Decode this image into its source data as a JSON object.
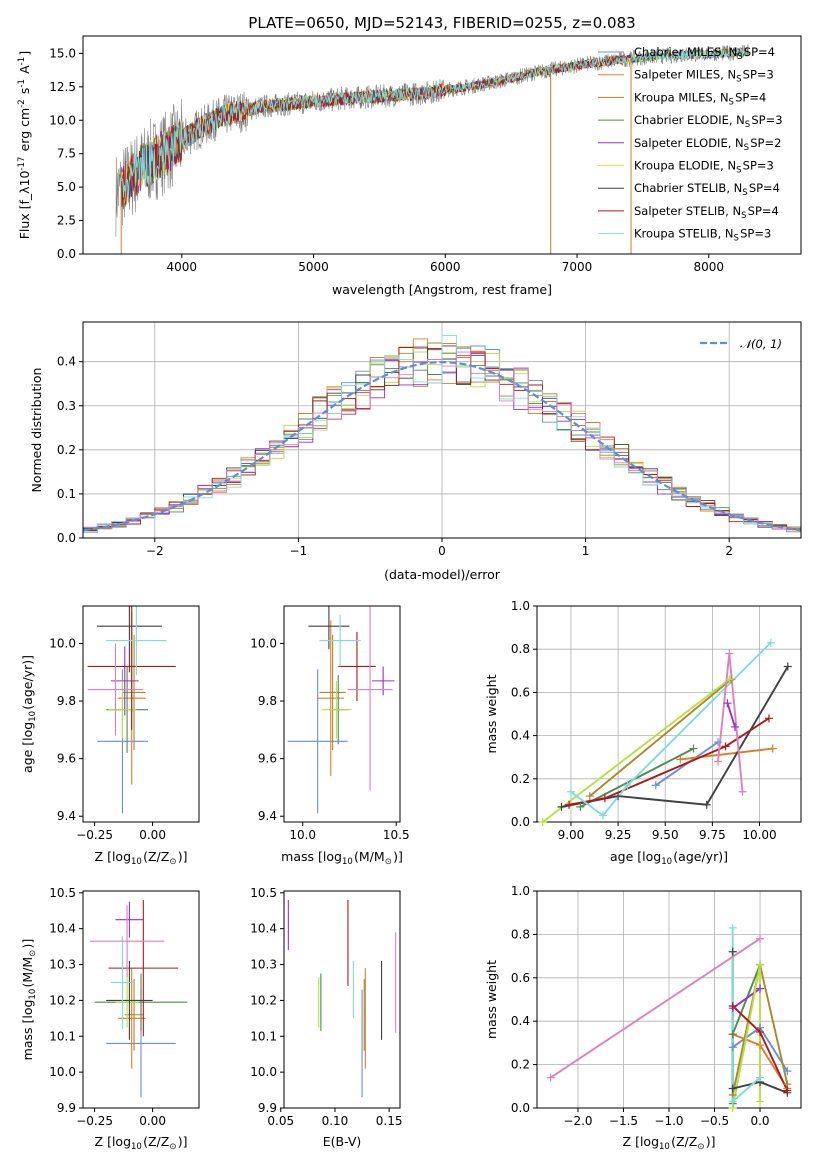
{
  "figure_title": "PLATE=0650, MJD=52143, FIBERID=0255, z=0.083",
  "colors": {
    "chabrier_miles": "#6a8fd8",
    "salpeter_miles": "#e07b2a",
    "kroupa_miles": "#a8882a",
    "chabrier_elodie": "#4e8a52",
    "salpeter_elodie": "#9b30c8",
    "kroupa_elodie": "#f0e040",
    "chabrier_stelib": "#404040",
    "salpeter_stelib": "#b01818",
    "kroupa_stelib": "#7fdcdc",
    "pink": "#e07fbf",
    "lime": "#b8e040",
    "spectrum": "#808080",
    "normal_curve": "#5b8fd6",
    "grid": "#b0b0b0"
  },
  "chart_data": [
    {
      "id": "spectrum",
      "type": "line",
      "title": "PLATE=0650, MJD=52143, FIBERID=0255, z=0.083",
      "xlabel": "wavelength [Angstrom, rest frame]",
      "ylabel": "Flux [f_λ10^{-17} erg cm^{-2} s^{-1} A^{-1}]",
      "xlim": [
        3250,
        8700
      ],
      "ylim": [
        0,
        16.3
      ],
      "xticks": [
        "4000",
        "5000",
        "6000",
        "7000",
        "8000"
      ],
      "yticks": [
        "0.0",
        "2.5",
        "5.0",
        "7.5",
        "10.0",
        "12.5",
        "15.0"
      ],
      "grid": false,
      "legend_position": "top-right",
      "continuum": [
        [
          3500,
          4.5
        ],
        [
          3700,
          6.5
        ],
        [
          3900,
          7.8
        ],
        [
          4100,
          9.2
        ],
        [
          4300,
          10.3
        ],
        [
          4600,
          11.0
        ],
        [
          4900,
          11.3
        ],
        [
          5200,
          11.6
        ],
        [
          5500,
          11.8
        ],
        [
          5800,
          12.0
        ],
        [
          6100,
          12.4
        ],
        [
          6400,
          12.9
        ],
        [
          6700,
          13.6
        ],
        [
          7000,
          14.1
        ],
        [
          7300,
          14.5
        ],
        [
          7500,
          14.7
        ],
        [
          7800,
          14.9
        ],
        [
          8100,
          15.0
        ],
        [
          8300,
          15.1
        ]
      ],
      "legend": [
        "Chabrier MILES, N_SSP=4",
        "Salpeter MILES, N_SSP=3",
        "Kroupa MILES, N_SSP=4",
        "Chabrier ELODIE, N_SSP=3",
        "Salpeter ELODIE, N_SSP=2",
        "Kroupa ELODIE, N_SSP=3",
        "Chabrier STELIB, N_SSP=4",
        "Salpeter STELIB, N_SSP=4",
        "Kroupa STELIB, N_SSP=3"
      ]
    },
    {
      "id": "residuals",
      "type": "histogram",
      "xlabel": "(data-model)/error",
      "ylabel": "Normed distribution",
      "xlim": [
        -2.5,
        2.5
      ],
      "ylim": [
        0,
        0.49
      ],
      "xticks": [
        "−2",
        "−1",
        "0",
        "1",
        "2"
      ],
      "yticks": [
        "0.0",
        "0.1",
        "0.2",
        "0.3",
        "0.4"
      ],
      "grid": true,
      "legend": [
        "𝒩(0, 1)"
      ],
      "legend_position": "top-right",
      "bin_width": 0.1
    },
    {
      "id": "z_age",
      "type": "errorbar",
      "xlabel": "Z [log10(Z/Z⊙)]",
      "ylabel": "age [log10(age/yr)]",
      "xlim": [
        -0.3,
        0.2
      ],
      "ylim": [
        9.38,
        10.13
      ],
      "xticks": [
        "−0.25",
        "0.00"
      ],
      "yticks": [
        "9.4",
        "9.6",
        "9.8",
        "10.0"
      ],
      "points": [
        {
          "x": -0.13,
          "y": 9.66,
          "xerr": 0.11,
          "yerr": 0.25,
          "color": "chabrier_miles"
        },
        {
          "x": -0.09,
          "y": 9.81,
          "xerr": 0.06,
          "yerr": 0.3,
          "color": "salpeter_miles"
        },
        {
          "x": -0.08,
          "y": 9.83,
          "xerr": 0.05,
          "yerr": 0.2,
          "color": "kroupa_miles"
        },
        {
          "x": -0.11,
          "y": 9.77,
          "xerr": 0.09,
          "yerr": 0.15,
          "color": "chabrier_elodie"
        },
        {
          "x": -0.12,
          "y": 9.87,
          "xerr": 0.06,
          "yerr": 0.12,
          "color": "salpeter_elodie"
        },
        {
          "x": -0.13,
          "y": 9.77,
          "xerr": 0.06,
          "yerr": 0.1,
          "color": "lime"
        },
        {
          "x": -0.1,
          "y": 10.06,
          "xerr": 0.14,
          "yerr": 0.16,
          "color": "chabrier_stelib"
        },
        {
          "x": -0.09,
          "y": 9.92,
          "xerr": 0.19,
          "yerr": 0.22,
          "color": "salpeter_stelib"
        },
        {
          "x": -0.07,
          "y": 10.01,
          "xerr": 0.13,
          "yerr": 0.12,
          "color": "kroupa_stelib"
        },
        {
          "x": -0.16,
          "y": 9.84,
          "xerr": 0.12,
          "yerr": 0.16,
          "color": "pink"
        }
      ]
    },
    {
      "id": "mass_age",
      "type": "errorbar",
      "xlabel": "mass [log10(M/M⊙)]",
      "ylabel": "",
      "xlim": [
        9.9,
        10.52
      ],
      "ylim": [
        9.38,
        10.13
      ],
      "xticks": [
        "10.0",
        "10.5"
      ],
      "yticks": [
        "9.4",
        "9.6",
        "9.8",
        "10.0"
      ],
      "points": [
        {
          "x": 10.08,
          "y": 9.66,
          "xerr": 0.16,
          "yerr": 0.25,
          "color": "chabrier_miles"
        },
        {
          "x": 10.15,
          "y": 9.81,
          "xerr": 0.07,
          "yerr": 0.27,
          "color": "salpeter_miles"
        },
        {
          "x": 10.16,
          "y": 9.83,
          "xerr": 0.07,
          "yerr": 0.2,
          "color": "kroupa_miles"
        },
        {
          "x": 10.19,
          "y": 9.77,
          "xerr": 0.05,
          "yerr": 0.12,
          "color": "chabrier_elodie"
        },
        {
          "x": 10.43,
          "y": 9.87,
          "xerr": 0.06,
          "yerr": 0.05,
          "color": "salpeter_elodie"
        },
        {
          "x": 10.18,
          "y": 9.77,
          "xerr": 0.08,
          "yerr": 0.1,
          "color": "lime"
        },
        {
          "x": 10.14,
          "y": 10.06,
          "xerr": 0.11,
          "yerr": 0.08,
          "color": "chabrier_stelib"
        },
        {
          "x": 10.29,
          "y": 9.92,
          "xerr": 0.1,
          "yerr": 0.12,
          "color": "salpeter_stelib"
        },
        {
          "x": 10.2,
          "y": 10.01,
          "xerr": 0.11,
          "yerr": 0.09,
          "color": "kroupa_stelib"
        },
        {
          "x": 10.36,
          "y": 9.84,
          "xerr": 0.12,
          "yerr": 0.35,
          "color": "pink"
        }
      ]
    },
    {
      "id": "age_weight",
      "type": "line",
      "xlabel": "age [log10(age/yr)]",
      "ylabel": "mass weight",
      "xlim": [
        8.82,
        10.22
      ],
      "ylim": [
        0,
        1.0
      ],
      "xticks": [
        "9.00",
        "9.25",
        "9.50",
        "9.75",
        "10.00"
      ],
      "yticks": [
        "0.0",
        "0.2",
        "0.4",
        "0.6",
        "0.8",
        "1.0"
      ],
      "grid": true,
      "series": [
        {
          "color": "chabrier_miles",
          "x": [
            9.45,
            9.78
          ],
          "y": [
            0.17,
            0.37
          ]
        },
        {
          "color": "salpeter_miles",
          "x": [
            9.58,
            10.07
          ],
          "y": [
            0.29,
            0.34
          ]
        },
        {
          "color": "kroupa_miles",
          "x": [
            9.1,
            9.85
          ],
          "y": [
            0.12,
            0.66
          ]
        },
        {
          "color": "chabrier_elodie",
          "x": [
            9.05,
            9.65
          ],
          "y": [
            0.07,
            0.34
          ]
        },
        {
          "color": "salpeter_elodie",
          "x": [
            9.83,
            9.87
          ],
          "y": [
            0.55,
            0.44
          ]
        },
        {
          "color": "lime",
          "x": [
            8.85,
            9.84
          ],
          "y": [
            0.0,
            0.66
          ]
        },
        {
          "color": "chabrier_stelib",
          "x": [
            8.95,
            9.25,
            9.72,
            10.15
          ],
          "y": [
            0.07,
            0.12,
            0.08,
            0.72
          ]
        },
        {
          "color": "salpeter_stelib",
          "x": [
            8.99,
            9.18,
            9.82,
            10.05
          ],
          "y": [
            0.08,
            0.11,
            0.35,
            0.48
          ]
        },
        {
          "color": "kroupa_stelib",
          "x": [
            9.0,
            9.17,
            9.3,
            10.06
          ],
          "y": [
            0.14,
            0.03,
            0.17,
            0.83
          ]
        },
        {
          "color": "pink",
          "x": [
            9.78,
            9.84,
            9.91
          ],
          "y": [
            0.28,
            0.78,
            0.14
          ]
        }
      ]
    },
    {
      "id": "z_mass",
      "type": "errorbar",
      "xlabel": "Z [log10(Z/Z⊙)]",
      "ylabel": "mass [log10(M/M⊙)]",
      "xlim": [
        -0.3,
        0.2
      ],
      "ylim": [
        9.9,
        10.505
      ],
      "xticks": [
        "−0.25",
        "0.00"
      ],
      "yticks": [
        "9.9",
        "10.0",
        "10.1",
        "10.2",
        "10.3",
        "10.4",
        "10.5"
      ],
      "points": [
        {
          "x": -0.05,
          "y": 10.08,
          "xerr": 0.15,
          "yerr": 0.15,
          "color": "chabrier_miles"
        },
        {
          "x": -0.09,
          "y": 10.15,
          "xerr": 0.06,
          "yerr": 0.14,
          "color": "salpeter_miles"
        },
        {
          "x": -0.08,
          "y": 10.16,
          "xerr": 0.04,
          "yerr": 0.1,
          "color": "kroupa_miles"
        },
        {
          "x": -0.05,
          "y": 10.195,
          "xerr": 0.2,
          "yerr": 0.08,
          "color": "chabrier_elodie"
        },
        {
          "x": -0.1,
          "y": 10.425,
          "xerr": 0.06,
          "yerr": 0.05,
          "color": "salpeter_elodie"
        },
        {
          "x": -0.11,
          "y": 10.195,
          "xerr": 0.05,
          "yerr": 0.07,
          "color": "lime"
        },
        {
          "x": -0.1,
          "y": 10.2,
          "xerr": 0.1,
          "yerr": 0.11,
          "color": "chabrier_stelib"
        },
        {
          "x": -0.04,
          "y": 10.29,
          "xerr": 0.15,
          "yerr": 0.19,
          "color": "salpeter_stelib"
        },
        {
          "x": -0.13,
          "y": 10.25,
          "xerr": 0.05,
          "yerr": 0.13,
          "color": "kroupa_stelib"
        },
        {
          "x": -0.11,
          "y": 10.365,
          "xerr": 0.16,
          "yerr": 0.1,
          "color": "pink"
        }
      ]
    },
    {
      "id": "ebv_mass",
      "type": "errorbar",
      "xlabel": "E(B-V)",
      "ylabel": "",
      "xlim": [
        0.053,
        0.16
      ],
      "ylim": [
        9.9,
        10.505
      ],
      "xticks": [
        "0.05",
        "0.10",
        "0.15"
      ],
      "yticks": [
        "9.9",
        "10.0",
        "10.1",
        "10.2",
        "10.3",
        "10.4",
        "10.5"
      ],
      "points": [
        {
          "x": 0.125,
          "y": 10.08,
          "yerr": 0.15,
          "color": "chabrier_miles"
        },
        {
          "x": 0.128,
          "y": 10.15,
          "yerr": 0.14,
          "color": "salpeter_miles"
        },
        {
          "x": 0.127,
          "y": 10.16,
          "yerr": 0.1,
          "color": "kroupa_miles"
        },
        {
          "x": 0.087,
          "y": 10.195,
          "yerr": 0.08,
          "color": "chabrier_elodie"
        },
        {
          "x": 0.057,
          "y": 10.41,
          "yerr": 0.07,
          "color": "salpeter_elodie"
        },
        {
          "x": 0.085,
          "y": 10.195,
          "yerr": 0.07,
          "color": "lime"
        },
        {
          "x": 0.143,
          "y": 10.2,
          "yerr": 0.11,
          "color": "chabrier_stelib"
        },
        {
          "x": 0.112,
          "y": 10.36,
          "yerr": 0.12,
          "color": "salpeter_stelib"
        },
        {
          "x": 0.117,
          "y": 10.23,
          "yerr": 0.08,
          "color": "kroupa_stelib"
        },
        {
          "x": 0.156,
          "y": 10.25,
          "yerr": 0.14,
          "color": "pink"
        }
      ]
    },
    {
      "id": "z_weight",
      "type": "line",
      "xlabel": "Z [log10(Z/Z⊙)]",
      "ylabel": "mass weight",
      "xlim": [
        -2.45,
        0.45
      ],
      "ylim": [
        0,
        1.0
      ],
      "xticks": [
        "−2.0",
        "−1.5",
        "−1.0",
        "−0.5",
        "0.0"
      ],
      "yticks": [
        "0.0",
        "0.2",
        "0.4",
        "0.6",
        "0.8",
        "1.0"
      ],
      "grid": true,
      "series": [
        {
          "color": "chabrier_miles",
          "x": [
            -0.3,
            0.0,
            0.3
          ],
          "y": [
            0.28,
            0.37,
            0.17
          ]
        },
        {
          "color": "salpeter_miles",
          "x": [
            -0.3,
            0.0,
            0.3
          ],
          "y": [
            0.34,
            0.29,
            0.09
          ]
        },
        {
          "color": "kroupa_miles",
          "x": [
            -0.3,
            0.0,
            0.3
          ],
          "y": [
            0.06,
            0.66,
            0.11
          ]
        },
        {
          "color": "chabrier_elodie",
          "x": [
            -0.3,
            -0.3,
            0.0
          ],
          "y": [
            0.02,
            0.34,
            0.66
          ]
        },
        {
          "color": "salpeter_elodie",
          "x": [
            -0.3,
            0.0
          ],
          "y": [
            0.46,
            0.55
          ]
        },
        {
          "color": "lime",
          "x": [
            -0.3,
            0.0,
            0.0
          ],
          "y": [
            0.0,
            0.66,
            0.03
          ]
        },
        {
          "color": "chabrier_stelib",
          "x": [
            -0.3,
            -0.3,
            0.0,
            0.3
          ],
          "y": [
            0.72,
            0.09,
            0.12,
            0.07
          ]
        },
        {
          "color": "salpeter_stelib",
          "x": [
            -0.3,
            0.0,
            0.3
          ],
          "y": [
            0.47,
            0.35,
            0.08
          ]
        },
        {
          "color": "kroupa_stelib",
          "x": [
            -0.3,
            -0.3,
            0.0
          ],
          "y": [
            0.83,
            0.03,
            0.14
          ]
        },
        {
          "color": "pink",
          "x": [
            -2.3,
            0.0
          ],
          "y": [
            0.14,
            0.78
          ]
        }
      ]
    }
  ]
}
